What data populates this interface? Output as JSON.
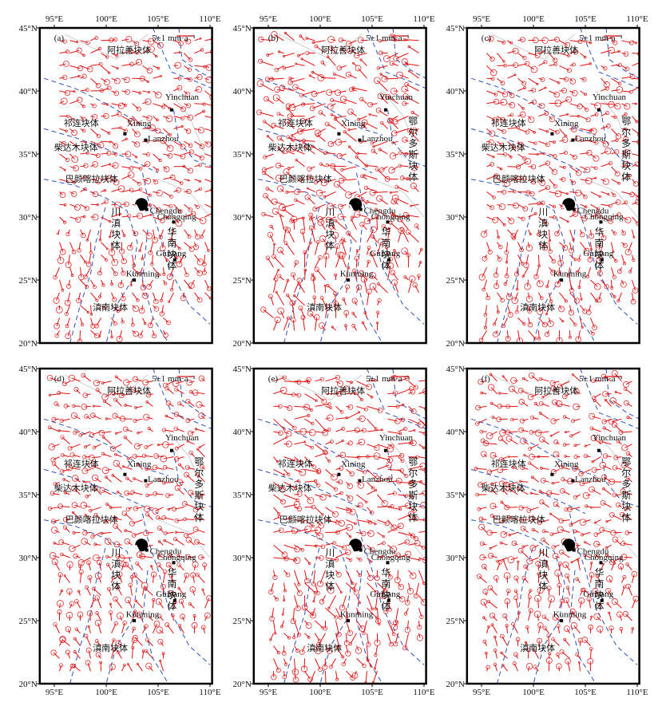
{
  "panels": [
    {
      "label": "(a)"
    },
    {
      "label": "(b)"
    },
    {
      "label": "(c)"
    },
    {
      "label": "(d)"
    },
    {
      "label": "(e)"
    },
    {
      "label": "(f)"
    }
  ],
  "scale_label": "5±1 mm·a⁻¹",
  "lon_ticks": [
    {
      "value": 95,
      "label": "95°E"
    },
    {
      "value": 100,
      "label": "100°E"
    },
    {
      "value": 105,
      "label": "105°E"
    },
    {
      "value": 110,
      "label": "110°E"
    }
  ],
  "lat_ticks": [
    {
      "value": 20,
      "label": "20°N"
    },
    {
      "value": 25,
      "label": "25°N"
    },
    {
      "value": 30,
      "label": "30°N"
    },
    {
      "value": 35,
      "label": "35°N"
    },
    {
      "value": 40,
      "label": "40°N"
    },
    {
      "value": 45,
      "label": "45°N"
    }
  ],
  "cities": [
    "Yinchuan",
    "Xining",
    "Lanzhou",
    "Chengdu",
    "Chongqing",
    "Guiyang",
    "Kunming"
  ],
  "blocks": [
    "阿拉善块体",
    "祁连块体",
    "柴达木块体",
    "巴颜喀拉块体",
    "川滇块体",
    "华南块体",
    "滇南块体",
    "鄂尔多斯块体"
  ]
}
